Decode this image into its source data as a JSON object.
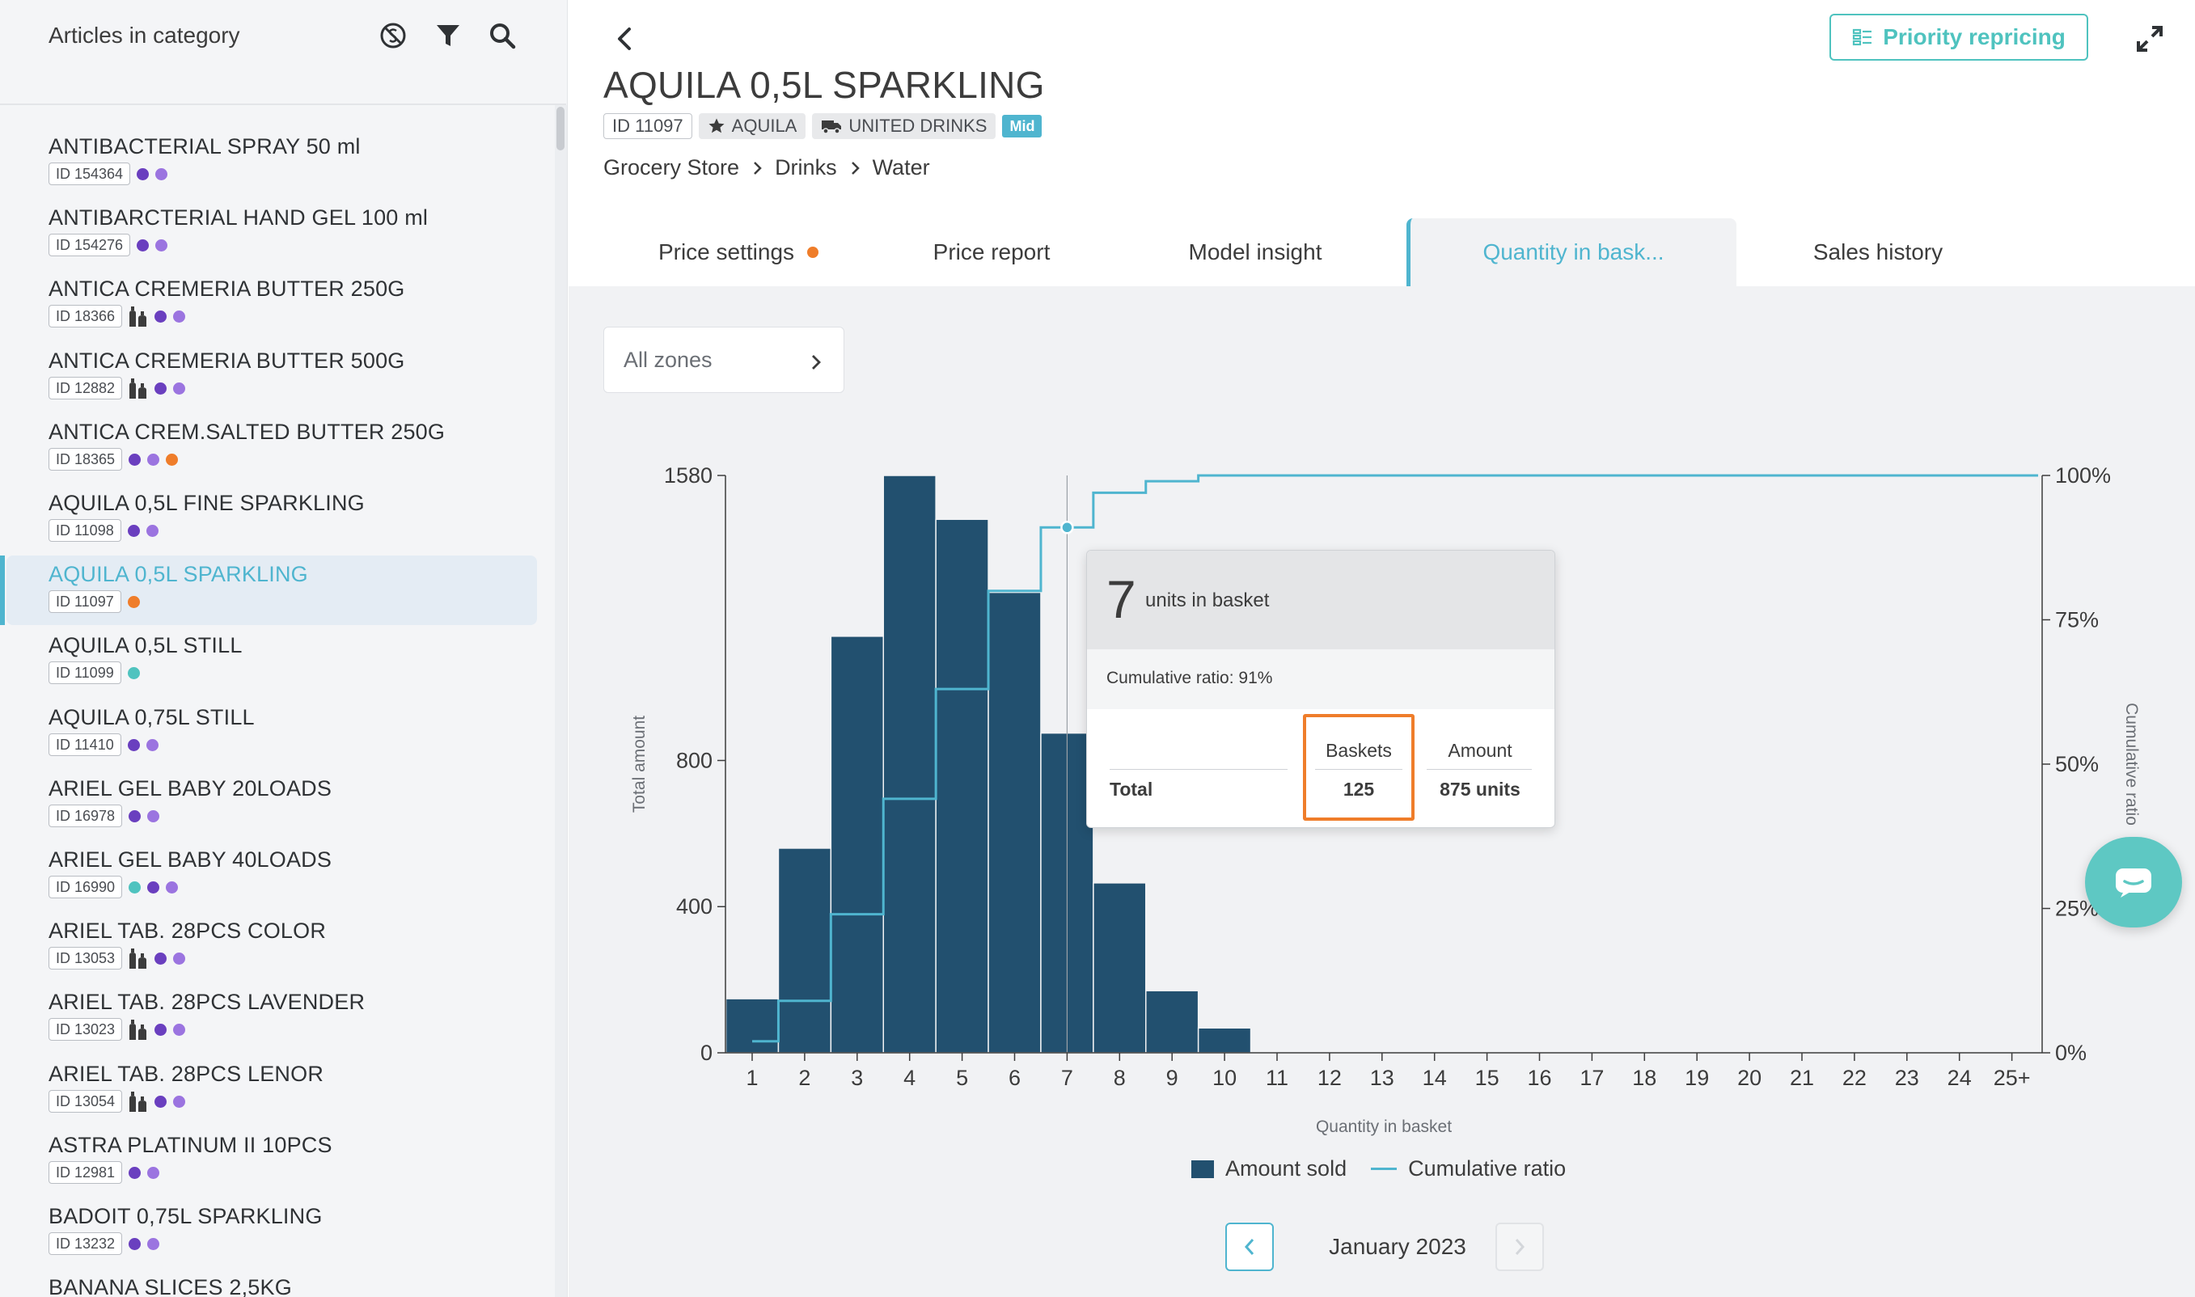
{
  "sidebar": {
    "title": "Articles in category",
    "icons": [
      "currency-off-icon",
      "filter-icon",
      "search-icon"
    ],
    "articles": [
      {
        "name": "ANTIBACTERIAL SPRAY 50 ml",
        "id": "ID 154364",
        "bottles": false,
        "dots": [
          "#6a3fbf",
          "#9b74e0"
        ]
      },
      {
        "name": "ANTIBARCTERIAL HAND GEL 100 ml",
        "id": "ID 154276",
        "bottles": false,
        "dots": [
          "#6a3fbf",
          "#9b74e0"
        ]
      },
      {
        "name": "ANTICA CREMERIA BUTTER 250G",
        "id": "ID 18366",
        "bottles": true,
        "dots": [
          "#6a3fbf",
          "#9b74e0"
        ]
      },
      {
        "name": "ANTICA CREMERIA BUTTER 500G",
        "id": "ID 12882",
        "bottles": true,
        "dots": [
          "#6a3fbf",
          "#9b74e0"
        ]
      },
      {
        "name": "ANTICA CREM.SALTED BUTTER 250G",
        "id": "ID 18365",
        "bottles": false,
        "dots": [
          "#6a3fbf",
          "#9b74e0",
          "#ef7d2a"
        ]
      },
      {
        "name": "AQUILA 0,5L FINE SPARKLING",
        "id": "ID 11098",
        "bottles": false,
        "dots": [
          "#6a3fbf",
          "#9b74e0"
        ]
      },
      {
        "name": "AQUILA 0,5L SPARKLING",
        "id": "ID 11097",
        "bottles": false,
        "dots": [
          "#ef7d2a"
        ],
        "selected": true
      },
      {
        "name": "AQUILA 0,5L STILL",
        "id": "ID 11099",
        "bottles": false,
        "dots": [
          "#4fc3bf"
        ]
      },
      {
        "name": "AQUILA 0,75L STILL",
        "id": "ID 11410",
        "bottles": false,
        "dots": [
          "#6a3fbf",
          "#9b74e0"
        ]
      },
      {
        "name": "ARIEL GEL BABY 20LOADS",
        "id": "ID 16978",
        "bottles": false,
        "dots": [
          "#6a3fbf",
          "#9b74e0"
        ]
      },
      {
        "name": "ARIEL GEL BABY 40LOADS",
        "id": "ID 16990",
        "bottles": false,
        "dots": [
          "#4fc3bf",
          "#6a3fbf",
          "#9b74e0"
        ]
      },
      {
        "name": "ARIEL TAB. 28PCS COLOR",
        "id": "ID 13053",
        "bottles": true,
        "dots": [
          "#6a3fbf",
          "#9b74e0"
        ]
      },
      {
        "name": "ARIEL TAB. 28PCS LAVENDER",
        "id": "ID 13023",
        "bottles": true,
        "dots": [
          "#6a3fbf",
          "#9b74e0"
        ]
      },
      {
        "name": "ARIEL TAB. 28PCS LENOR",
        "id": "ID 13054",
        "bottles": true,
        "dots": [
          "#6a3fbf",
          "#9b74e0"
        ]
      },
      {
        "name": "ASTRA PLATINUM II 10PCS",
        "id": "ID 12981",
        "bottles": false,
        "dots": [
          "#6a3fbf",
          "#9b74e0"
        ]
      },
      {
        "name": "BADOIT 0,75L SPARKLING",
        "id": "ID 13232",
        "bottles": false,
        "dots": [
          "#6a3fbf",
          "#9b74e0"
        ]
      },
      {
        "name": "BANANA SLICES 2,5KG",
        "id": "",
        "bottles": false,
        "dots": []
      }
    ]
  },
  "header": {
    "title": "AQUILA 0,5L SPARKLING",
    "id_chip": "ID 11097",
    "brand_chip": "AQUILA",
    "supplier_chip": "UNITED DRINKS",
    "tier_badge": "Mid",
    "breadcrumb": [
      "Grocery Store",
      "Drinks",
      "Water"
    ],
    "priority_button": "Priority repricing"
  },
  "tabs": [
    {
      "label": "Price settings",
      "has_dot": true
    },
    {
      "label": "Price report"
    },
    {
      "label": "Model insight"
    },
    {
      "label": "Quantity in bask...",
      "active": true
    },
    {
      "label": "Sales history"
    }
  ],
  "zone_select": {
    "label": "All zones"
  },
  "tooltip": {
    "number": "7",
    "units_label": "units in basket",
    "cumulative": "Cumulative ratio: 91%",
    "col_baskets": "Baskets",
    "col_amount": "Amount",
    "row_label": "Total",
    "baskets_value": "125",
    "amount_value": "875 units"
  },
  "legend": {
    "amount": "Amount sold",
    "cumulative": "Cumulative ratio"
  },
  "pager": {
    "month": "January 2023"
  },
  "colors": {
    "accent": "#4fb5cf",
    "teal": "#4fc3bf",
    "bar": "#22506f",
    "orange": "#ef7d2a"
  },
  "chart_data": {
    "type": "bar",
    "xlabel": "Quantity in basket",
    "ylabel": "Total amount",
    "y2label": "Cumulative ratio",
    "categories": [
      "1",
      "2",
      "3",
      "4",
      "5",
      "6",
      "7",
      "8",
      "9",
      "10",
      "11",
      "12",
      "13",
      "14",
      "15",
      "16",
      "17",
      "18",
      "19",
      "20",
      "21",
      "22",
      "23",
      "24",
      "25+"
    ],
    "series": [
      {
        "name": "Amount sold",
        "type": "bar",
        "values": [
          148,
          560,
          1140,
          1580,
          1460,
          1260,
          875,
          465,
          170,
          68,
          0,
          0,
          0,
          0,
          0,
          0,
          0,
          0,
          0,
          0,
          0,
          0,
          0,
          0,
          0
        ]
      },
      {
        "name": "Cumulative ratio",
        "type": "line",
        "axis": "right",
        "values": [
          2,
          9,
          24,
          44,
          63,
          80,
          91,
          97,
          99,
          100,
          100,
          100,
          100,
          100,
          100,
          100,
          100,
          100,
          100,
          100,
          100,
          100,
          100,
          100,
          100
        ]
      }
    ],
    "y_ticks": [
      0,
      400,
      800,
      1580
    ],
    "ylim": [
      0,
      1580
    ],
    "y2_ticks": [
      "0%",
      "25%",
      "50%",
      "75%",
      "100%"
    ],
    "y2lim": [
      0,
      100
    ],
    "highlighted_category": "7",
    "legend_position": "bottom"
  }
}
